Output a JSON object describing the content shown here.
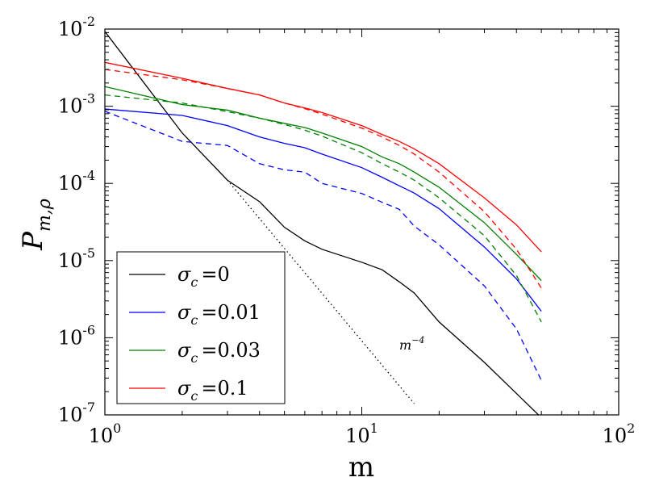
{
  "chart_data": {
    "type": "line",
    "xlabel": "m",
    "ylabel_main": "P",
    "ylabel_sub": "m,ρ",
    "xscale": "log",
    "yscale": "log",
    "xlim": [
      1,
      100
    ],
    "ylim": [
      1e-07,
      0.01
    ],
    "legend_position": "lower-left",
    "x_ticks": [
      {
        "value": 1,
        "base": "10",
        "exp": "0"
      },
      {
        "value": 10,
        "base": "10",
        "exp": "1"
      },
      {
        "value": 100,
        "base": "10",
        "exp": "2"
      }
    ],
    "y_ticks": [
      {
        "value": 1e-07,
        "base": "10",
        "exp": "-7"
      },
      {
        "value": 1e-06,
        "base": "10",
        "exp": "-6"
      },
      {
        "value": 1e-05,
        "base": "10",
        "exp": "-5"
      },
      {
        "value": 0.0001,
        "base": "10",
        "exp": "-4"
      },
      {
        "value": 0.001,
        "base": "10",
        "exp": "-3"
      },
      {
        "value": 0.01,
        "base": "10",
        "exp": "-2"
      }
    ],
    "series": [
      {
        "name": "sigma0",
        "symbol": "σ",
        "sub": "c",
        "value_text": "=0",
        "color": "#000000",
        "dash": "solid",
        "x": [
          1,
          2,
          3,
          4,
          5,
          6,
          7,
          10,
          12,
          14,
          16,
          20,
          30,
          50
        ],
        "y": [
          0.0093,
          0.00045,
          0.00011,
          5.8e-05,
          2.7e-05,
          1.8e-05,
          1.4e-05,
          9.5e-06,
          7.6e-06,
          5.3e-06,
          3.8e-06,
          1.6e-06,
          4.8e-07,
          9.2e-08
        ]
      },
      {
        "name": "sigma0.01",
        "symbol": "σ",
        "sub": "c",
        "value_text": "=0.01",
        "color": "#0000ff",
        "dash": "solid",
        "x": [
          1,
          2,
          3,
          4,
          5,
          6,
          7,
          10,
          12,
          14,
          16,
          20,
          30,
          40,
          50
        ],
        "y": [
          0.00092,
          0.00076,
          0.00056,
          0.0004,
          0.00033,
          0.00029,
          0.00024,
          0.00016,
          0.00012,
          9.3e-05,
          7.5e-05,
          4.7e-05,
          1.5e-05,
          5.8e-06,
          2.2e-06
        ]
      },
      {
        "name": "sigma0.01-dashed",
        "color": "#0000ff",
        "dash": "dashed",
        "x": [
          1,
          2,
          3,
          4,
          5,
          6,
          7,
          10,
          12,
          14,
          16,
          20,
          30,
          40,
          50
        ],
        "y": [
          0.00086,
          0.00035,
          0.00031,
          0.00018,
          0.00015,
          0.00014,
          0.0001,
          7.4e-05,
          5.7e-05,
          4.6e-05,
          2.8e-05,
          1.6e-05,
          4.7e-06,
          1.3e-06,
          2.8e-07
        ]
      },
      {
        "name": "sigma0.03",
        "symbol": "σ",
        "sub": "c",
        "value_text": "=0.03",
        "color": "#008000",
        "dash": "solid",
        "x": [
          1,
          2,
          3,
          4,
          5,
          6,
          7,
          10,
          12,
          14,
          16,
          20,
          30,
          40,
          50
        ],
        "y": [
          0.0018,
          0.00105,
          0.00089,
          0.0007,
          0.0006,
          0.00053,
          0.00045,
          0.0003,
          0.00022,
          0.00018,
          0.00014,
          8.9e-05,
          3.1e-05,
          1.2e-05,
          5.5e-06
        ]
      },
      {
        "name": "sigma0.03-dashed",
        "color": "#008000",
        "dash": "dashed",
        "x": [
          1,
          2,
          3,
          4,
          5,
          6,
          7,
          10,
          12,
          14,
          16,
          20,
          30,
          40,
          50
        ],
        "y": [
          0.0014,
          0.0011,
          0.00085,
          0.0007,
          0.00058,
          0.00049,
          0.00041,
          0.00025,
          0.00018,
          0.00014,
          0.00011,
          6.5e-05,
          2.1e-05,
          6.4e-06,
          1.6e-06
        ]
      },
      {
        "name": "sigma0.1",
        "symbol": "σ",
        "sub": "c",
        "value_text": "=0.1",
        "color": "#ff0000",
        "dash": "solid",
        "x": [
          1,
          2,
          3,
          4,
          5,
          6,
          7,
          10,
          12,
          14,
          16,
          20,
          30,
          40,
          50
        ],
        "y": [
          0.0037,
          0.0023,
          0.0017,
          0.0014,
          0.0011,
          0.00095,
          0.00083,
          0.00056,
          0.00043,
          0.00035,
          0.00028,
          0.00018,
          6.5e-05,
          2.9e-05,
          1.3e-05
        ]
      },
      {
        "name": "sigma0.1-dashed",
        "color": "#ff0000",
        "dash": "dashed",
        "x": [
          1,
          2,
          3,
          4,
          5,
          6,
          7,
          10,
          12,
          14,
          16,
          20,
          30,
          40,
          50
        ],
        "y": [
          0.003,
          0.0022,
          0.0017,
          0.0014,
          0.0011,
          0.00093,
          0.00079,
          0.00052,
          0.0004,
          0.00031,
          0.00024,
          0.00014,
          4.3e-05,
          1.4e-05,
          4.4e-06
        ]
      },
      {
        "name": "m-4-reference",
        "color": "#000000",
        "dash": "dotted",
        "x": [
          3,
          16
        ],
        "y": [
          0.00011,
          1.4e-07
        ]
      }
    ],
    "annotations": [
      {
        "base": "m",
        "exp": "−4",
        "x": 14,
        "y": 7e-07
      }
    ]
  }
}
